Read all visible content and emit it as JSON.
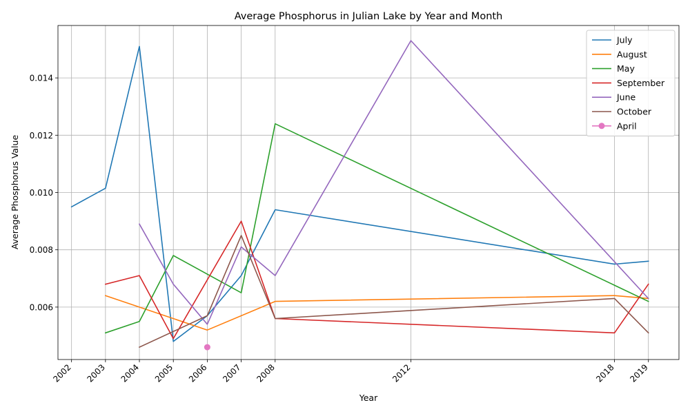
{
  "chart_data": {
    "type": "line",
    "title": "Average Phosphorus in Julian Lake by Year and Month",
    "xlabel": "Year",
    "ylabel": "Average Phosphorus Value",
    "xlim": [
      2001.6,
      2019.9
    ],
    "ylim": [
      0.00417,
      0.01583
    ],
    "x_ticks": [
      2002,
      2003,
      2004,
      2005,
      2006,
      2007,
      2008,
      2012,
      2018,
      2019
    ],
    "y_ticks": [
      0.006,
      0.008,
      0.01,
      0.012,
      0.014
    ],
    "y_tick_labels": [
      "0.006",
      "0.008",
      "0.010",
      "0.012",
      "0.014"
    ],
    "grid": true,
    "legend_position": "top-right",
    "series": [
      {
        "name": "July",
        "color": "#1f77b4",
        "marker": false,
        "x": [
          2002,
          2003,
          2004,
          2005,
          2006,
          2007,
          2008,
          2018,
          2019
        ],
        "y": [
          0.0095,
          0.01015,
          0.0151,
          0.0048,
          0.0057,
          0.0071,
          0.0094,
          0.0075,
          0.0076
        ]
      },
      {
        "name": "August",
        "color": "#ff7f0e",
        "marker": false,
        "x": [
          2003,
          2006,
          2008,
          2018,
          2019
        ],
        "y": [
          0.0064,
          0.0052,
          0.0062,
          0.0064,
          0.0063
        ]
      },
      {
        "name": "May",
        "color": "#2ca02c",
        "marker": false,
        "x": [
          2003,
          2004,
          2005,
          2007,
          2008,
          2019
        ],
        "y": [
          0.0051,
          0.0055,
          0.0078,
          0.0065,
          0.0124,
          0.0062
        ]
      },
      {
        "name": "September",
        "color": "#d62728",
        "marker": false,
        "x": [
          2003,
          2004,
          2005,
          2007,
          2008,
          2018,
          2019
        ],
        "y": [
          0.0068,
          0.0071,
          0.0049,
          0.009,
          0.0056,
          0.0051,
          0.0068
        ]
      },
      {
        "name": "June",
        "color": "#9467bd",
        "marker": false,
        "x": [
          2004,
          2005,
          2006,
          2007,
          2008,
          2012,
          2019
        ],
        "y": [
          0.0089,
          0.0068,
          0.0054,
          0.0081,
          0.0071,
          0.0153,
          0.0063
        ]
      },
      {
        "name": "October",
        "color": "#8c564b",
        "marker": false,
        "x": [
          2004,
          2006,
          2007,
          2008,
          2018,
          2019
        ],
        "y": [
          0.0046,
          0.0057,
          0.0085,
          0.0056,
          0.0063,
          0.0051
        ]
      },
      {
        "name": "April",
        "color": "#e377c2",
        "marker": true,
        "x": [
          2006
        ],
        "y": [
          0.0046
        ]
      }
    ]
  }
}
